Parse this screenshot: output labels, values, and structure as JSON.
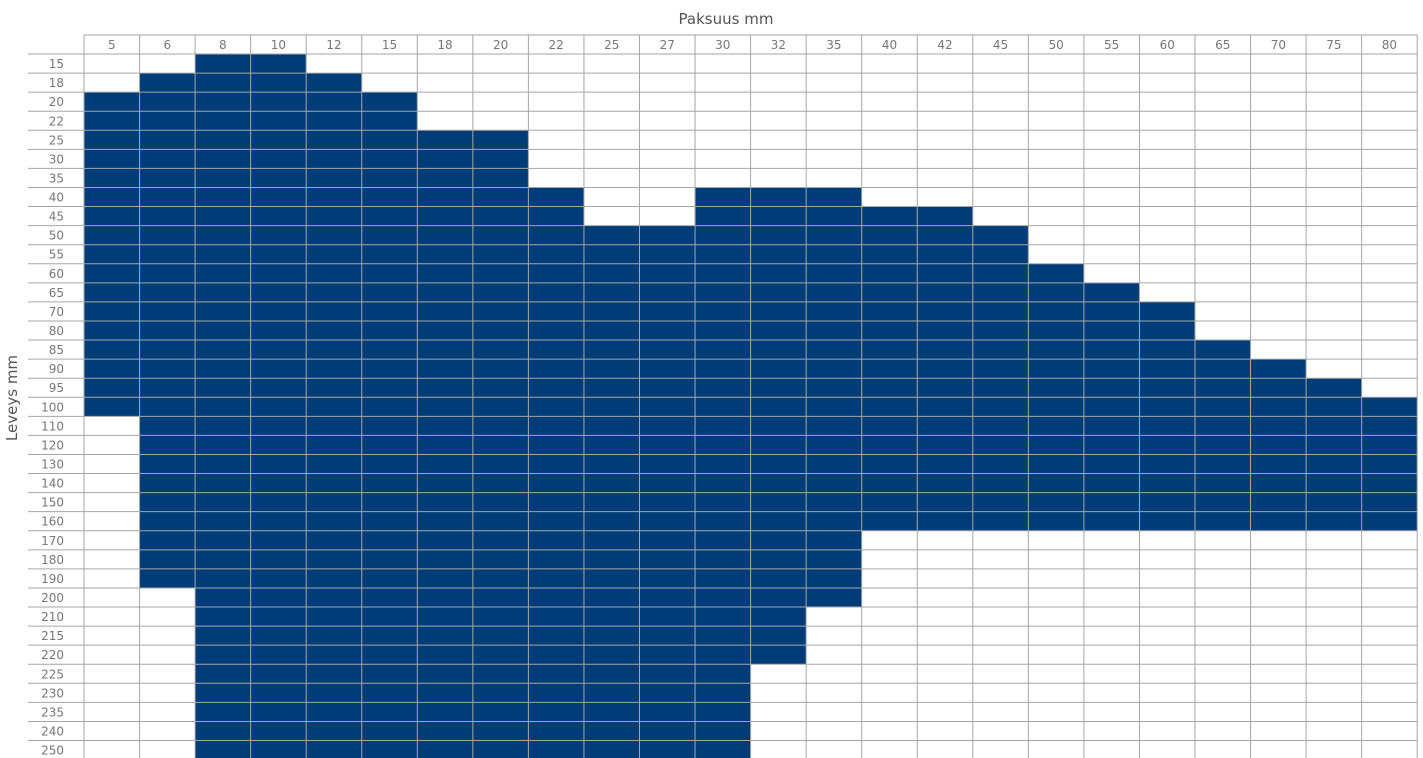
{
  "chart_data": {
    "type": "heatmap",
    "xlabel": "Paksuus mm",
    "ylabel": "Leveys mm",
    "x": [
      "5",
      "6",
      "8",
      "10",
      "12",
      "15",
      "18",
      "20",
      "22",
      "25",
      "27",
      "30",
      "32",
      "35",
      "40",
      "42",
      "45",
      "50",
      "55",
      "60",
      "65",
      "70",
      "75",
      "80"
    ],
    "y": [
      "15",
      "18",
      "20",
      "22",
      "25",
      "30",
      "35",
      "40",
      "45",
      "50",
      "55",
      "60",
      "65",
      "70",
      "80",
      "85",
      "90",
      "95",
      "100",
      "110",
      "120",
      "130",
      "140",
      "150",
      "160",
      "170",
      "180",
      "190",
      "200",
      "210",
      "215",
      "220",
      "225",
      "230",
      "235",
      "240",
      "250"
    ],
    "available_ranges": [
      {
        "thickness": "5",
        "width_from": "20",
        "width_to": "100"
      },
      {
        "thickness": "6",
        "width_from": "18",
        "width_to": "190"
      },
      {
        "thickness": "8",
        "width_from": "15",
        "width_to": "250"
      },
      {
        "thickness": "10",
        "width_from": "15",
        "width_to": "250"
      },
      {
        "thickness": "12",
        "width_from": "18",
        "width_to": "250"
      },
      {
        "thickness": "15",
        "width_from": "20",
        "width_to": "250"
      },
      {
        "thickness": "18",
        "width_from": "25",
        "width_to": "250"
      },
      {
        "thickness": "20",
        "width_from": "25",
        "width_to": "250"
      },
      {
        "thickness": "22",
        "width_from": "40",
        "width_to": "250"
      },
      {
        "thickness": "25",
        "width_from": "50",
        "width_to": "250"
      },
      {
        "thickness": "27",
        "width_from": "50",
        "width_to": "250"
      },
      {
        "thickness": "30",
        "width_from": "40",
        "width_to": "250"
      },
      {
        "thickness": "32",
        "width_from": "40",
        "width_to": "220"
      },
      {
        "thickness": "35",
        "width_from": "40",
        "width_to": "200"
      },
      {
        "thickness": "40",
        "width_from": "45",
        "width_to": "160"
      },
      {
        "thickness": "42",
        "width_from": "45",
        "width_to": "160"
      },
      {
        "thickness": "45",
        "width_from": "50",
        "width_to": "160"
      },
      {
        "thickness": "50",
        "width_from": "60",
        "width_to": "160"
      },
      {
        "thickness": "55",
        "width_from": "65",
        "width_to": "160"
      },
      {
        "thickness": "60",
        "width_from": "70",
        "width_to": "160"
      },
      {
        "thickness": "65",
        "width_from": "85",
        "width_to": "160"
      },
      {
        "thickness": "70",
        "width_from": "90",
        "width_to": "160"
      },
      {
        "thickness": "75",
        "width_from": "95",
        "width_to": "160"
      },
      {
        "thickness": "80",
        "width_from": "100",
        "width_to": "160"
      }
    ],
    "grid": true,
    "colors": {
      "available": "#003d78",
      "gridline": "#a6a6a6",
      "cell_divider": "#6f86a6"
    }
  }
}
